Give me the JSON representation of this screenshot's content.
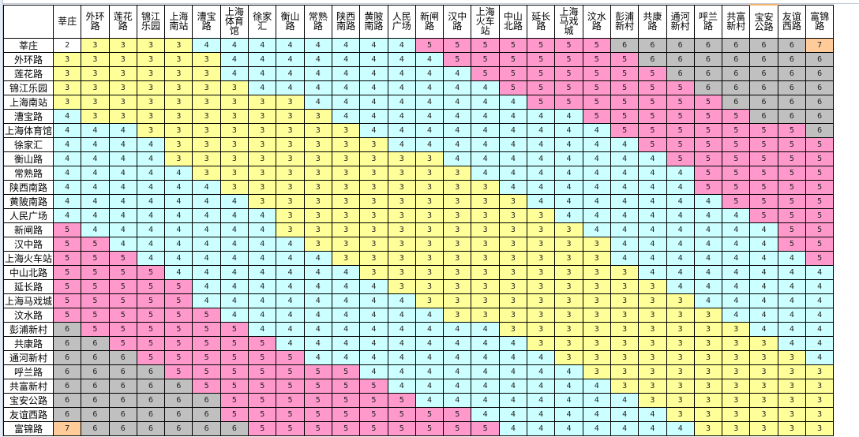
{
  "sheet": {
    "corner_label": "",
    "color_legend": {
      "2": "#ffffff",
      "3": "#ffff99",
      "4": "#ccffff",
      "5": "#ff99cc",
      "6": "#c0c0c0",
      "7": "#ffcc99"
    },
    "column_headers": [
      "莘庄",
      "外环路",
      "莲花路",
      "锦江乐园",
      "上海南站",
      "漕宝路",
      "上海体育馆",
      "徐家汇",
      "衡山路",
      "常熟路",
      "陕西南路",
      "黄陂南路",
      "人民广场",
      "新闸路",
      "汉中路",
      "上海火车站",
      "中山北路",
      "延长路",
      "上海马戏城",
      "汶水路",
      "彭浦新村",
      "共康路",
      "通河新村",
      "呼兰路",
      "共富新村",
      "宝安公路",
      "友谊西路",
      "富锦路"
    ],
    "row_headers": [
      "莘庄",
      "外环路",
      "莲花路",
      "锦江乐园",
      "上海南站",
      "漕宝路",
      "上海体育馆",
      "徐家汇",
      "衡山路",
      "常熟路",
      "陕西南路",
      "黄陂南路",
      "人民广场",
      "新闸路",
      "汉中路",
      "上海火车站",
      "中山北路",
      "延长路",
      "上海马戏城",
      "汶水路",
      "彭浦新村",
      "共康路",
      "通河新村",
      "呼兰路",
      "共富新村",
      "宝安公路",
      "友谊西路",
      "富锦路"
    ],
    "rows": [
      [
        2,
        3,
        3,
        3,
        3,
        4,
        4,
        4,
        4,
        4,
        4,
        4,
        4,
        5,
        5,
        5,
        5,
        5,
        5,
        5,
        6,
        6,
        6,
        6,
        6,
        6,
        6,
        7
      ],
      [
        3,
        3,
        3,
        3,
        3,
        3,
        4,
        4,
        4,
        4,
        4,
        4,
        4,
        4,
        5,
        5,
        5,
        5,
        5,
        5,
        5,
        6,
        6,
        6,
        6,
        6,
        6,
        6
      ],
      [
        3,
        3,
        3,
        3,
        3,
        3,
        4,
        4,
        4,
        4,
        4,
        4,
        4,
        4,
        4,
        5,
        5,
        5,
        5,
        5,
        5,
        5,
        6,
        6,
        6,
        6,
        6,
        6
      ],
      [
        3,
        3,
        3,
        3,
        3,
        3,
        3,
        4,
        4,
        4,
        4,
        4,
        4,
        4,
        4,
        4,
        5,
        5,
        5,
        5,
        5,
        5,
        5,
        6,
        6,
        6,
        6,
        6
      ],
      [
        3,
        3,
        3,
        3,
        3,
        3,
        3,
        3,
        3,
        4,
        4,
        4,
        4,
        4,
        4,
        4,
        4,
        5,
        5,
        5,
        5,
        5,
        5,
        5,
        6,
        6,
        6,
        6
      ],
      [
        4,
        3,
        3,
        3,
        3,
        3,
        3,
        3,
        3,
        3,
        4,
        4,
        4,
        4,
        4,
        4,
        4,
        4,
        4,
        5,
        5,
        5,
        5,
        5,
        5,
        6,
        6,
        6
      ],
      [
        4,
        4,
        4,
        3,
        3,
        3,
        3,
        3,
        3,
        3,
        3,
        4,
        4,
        4,
        4,
        4,
        4,
        4,
        4,
        4,
        5,
        5,
        5,
        5,
        5,
        5,
        5,
        6
      ],
      [
        4,
        4,
        4,
        4,
        3,
        3,
        3,
        3,
        3,
        3,
        3,
        3,
        4,
        4,
        4,
        4,
        4,
        4,
        4,
        4,
        4,
        5,
        5,
        5,
        5,
        5,
        5,
        5
      ],
      [
        4,
        4,
        4,
        4,
        3,
        3,
        3,
        3,
        3,
        3,
        3,
        3,
        3,
        3,
        4,
        4,
        4,
        4,
        4,
        4,
        4,
        4,
        5,
        5,
        5,
        5,
        5,
        5
      ],
      [
        4,
        4,
        4,
        4,
        4,
        3,
        3,
        3,
        3,
        3,
        3,
        3,
        3,
        3,
        3,
        4,
        4,
        4,
        4,
        4,
        4,
        4,
        4,
        5,
        5,
        5,
        5,
        5
      ],
      [
        4,
        4,
        4,
        4,
        4,
        4,
        3,
        3,
        3,
        3,
        3,
        3,
        3,
        3,
        3,
        3,
        4,
        4,
        4,
        4,
        4,
        4,
        4,
        5,
        5,
        5,
        5,
        5
      ],
      [
        4,
        4,
        4,
        4,
        4,
        4,
        4,
        3,
        3,
        3,
        3,
        3,
        3,
        3,
        3,
        3,
        3,
        4,
        4,
        4,
        4,
        4,
        4,
        4,
        5,
        5,
        5,
        5
      ],
      [
        4,
        4,
        4,
        4,
        4,
        4,
        4,
        4,
        3,
        3,
        3,
        3,
        3,
        3,
        3,
        3,
        3,
        3,
        4,
        4,
        4,
        4,
        4,
        4,
        4,
        5,
        5,
        5
      ],
      [
        5,
        4,
        4,
        4,
        4,
        4,
        4,
        4,
        3,
        3,
        3,
        3,
        3,
        3,
        3,
        3,
        3,
        3,
        3,
        4,
        4,
        4,
        4,
        4,
        4,
        4,
        5,
        5
      ],
      [
        5,
        5,
        4,
        4,
        4,
        4,
        4,
        4,
        4,
        3,
        3,
        3,
        3,
        3,
        3,
        3,
        3,
        3,
        3,
        3,
        4,
        4,
        4,
        4,
        4,
        4,
        5,
        5
      ],
      [
        5,
        5,
        5,
        4,
        4,
        4,
        4,
        4,
        4,
        4,
        3,
        3,
        3,
        3,
        3,
        3,
        3,
        3,
        3,
        3,
        4,
        4,
        4,
        4,
        4,
        4,
        4,
        5
      ],
      [
        5,
        5,
        5,
        5,
        4,
        4,
        4,
        4,
        4,
        4,
        4,
        3,
        3,
        3,
        3,
        3,
        3,
        3,
        3,
        3,
        3,
        4,
        4,
        4,
        4,
        4,
        4,
        4
      ],
      [
        5,
        5,
        5,
        5,
        5,
        4,
        4,
        4,
        4,
        4,
        4,
        4,
        3,
        3,
        3,
        3,
        3,
        3,
        3,
        3,
        3,
        3,
        4,
        4,
        4,
        4,
        4,
        4
      ],
      [
        5,
        5,
        5,
        5,
        5,
        4,
        4,
        4,
        4,
        4,
        4,
        4,
        4,
        3,
        3,
        3,
        3,
        3,
        3,
        3,
        3,
        3,
        3,
        4,
        4,
        4,
        4,
        4
      ],
      [
        5,
        5,
        5,
        5,
        5,
        5,
        4,
        4,
        4,
        4,
        4,
        4,
        4,
        4,
        3,
        3,
        3,
        3,
        3,
        3,
        3,
        3,
        3,
        3,
        4,
        4,
        4,
        4
      ],
      [
        6,
        5,
        5,
        5,
        5,
        5,
        5,
        4,
        4,
        4,
        4,
        4,
        4,
        4,
        4,
        4,
        3,
        3,
        3,
        3,
        3,
        3,
        3,
        3,
        3,
        4,
        4,
        4
      ],
      [
        6,
        6,
        5,
        5,
        5,
        5,
        5,
        5,
        4,
        4,
        4,
        4,
        4,
        4,
        4,
        4,
        4,
        3,
        3,
        3,
        3,
        3,
        3,
        3,
        3,
        3,
        4,
        4
      ],
      [
        6,
        6,
        6,
        5,
        5,
        5,
        5,
        5,
        5,
        4,
        4,
        4,
        4,
        4,
        4,
        4,
        4,
        4,
        3,
        3,
        3,
        3,
        3,
        3,
        3,
        3,
        3,
        4
      ],
      [
        6,
        6,
        6,
        6,
        5,
        5,
        5,
        5,
        5,
        5,
        5,
        4,
        4,
        4,
        4,
        4,
        4,
        4,
        4,
        3,
        3,
        3,
        3,
        3,
        3,
        3,
        3,
        3
      ],
      [
        6,
        6,
        6,
        6,
        6,
        5,
        5,
        5,
        5,
        5,
        5,
        5,
        4,
        4,
        4,
        4,
        4,
        4,
        4,
        4,
        3,
        3,
        3,
        3,
        3,
        3,
        3,
        3
      ],
      [
        6,
        6,
        6,
        6,
        6,
        6,
        5,
        5,
        5,
        5,
        5,
        5,
        5,
        4,
        4,
        4,
        4,
        4,
        4,
        4,
        4,
        3,
        3,
        3,
        3,
        3,
        3,
        3
      ],
      [
        6,
        6,
        6,
        6,
        6,
        6,
        5,
        5,
        5,
        5,
        5,
        5,
        5,
        5,
        5,
        4,
        4,
        4,
        4,
        4,
        4,
        4,
        3,
        3,
        3,
        3,
        3,
        3
      ],
      [
        7,
        6,
        6,
        6,
        6,
        6,
        6,
        5,
        5,
        5,
        5,
        5,
        5,
        5,
        5,
        5,
        4,
        4,
        4,
        4,
        4,
        4,
        4,
        3,
        3,
        3,
        3,
        3
      ]
    ]
  }
}
